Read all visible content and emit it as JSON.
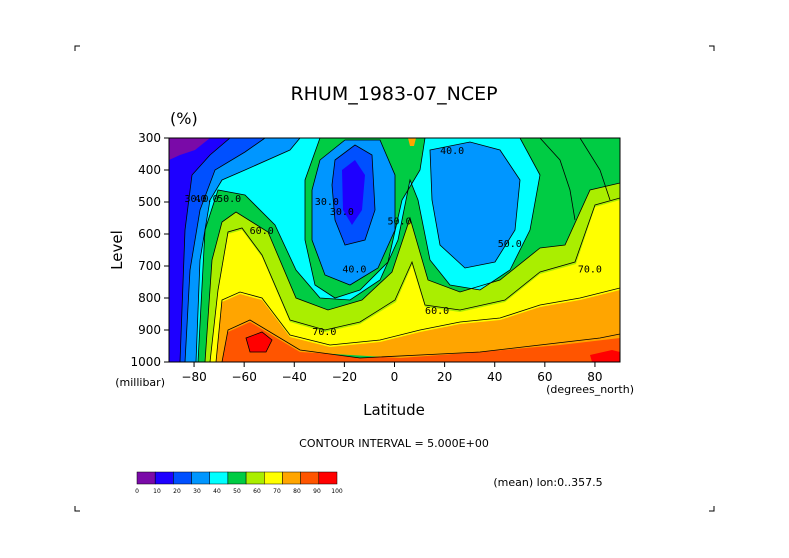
{
  "chart_data": {
    "type": "heatmap",
    "subtype": "filled-contour",
    "title": "RHUM_1983-07_NCEP",
    "units_label": "(%)",
    "xlabel": "Latitude",
    "ylabel": "Level",
    "x_units": "(degrees_north)",
    "y_units": "(millibar)",
    "xlim": [
      -90,
      90
    ],
    "ylim": [
      1000,
      300
    ],
    "x_ticks": [
      -80,
      -60,
      -40,
      -20,
      0,
      20,
      40,
      60,
      80
    ],
    "x_tick_labels": [
      "−80",
      "−60",
      "−40",
      "−20",
      "0",
      "20",
      "40",
      "60",
      "80"
    ],
    "y_ticks": [
      300,
      400,
      500,
      600,
      700,
      800,
      900,
      1000
    ],
    "y_tick_labels": [
      "300",
      "400",
      "500",
      "600",
      "700",
      "800",
      "900",
      "1000"
    ],
    "contour_interval_text": "CONTOUR INTERVAL = 5.000E+00",
    "mean_text": "(mean) lon:0..357.5",
    "colorbar": {
      "levels": [
        0,
        10,
        20,
        30,
        40,
        50,
        60,
        70,
        80,
        90,
        100
      ],
      "level_labels": [
        "0",
        "10",
        "20",
        "30",
        "40",
        "50",
        "60",
        "70",
        "80",
        "90",
        "100"
      ],
      "colors": [
        "#7a0aa8",
        "#1e00ff",
        "#0050ff",
        "#0096ff",
        "#00ffff",
        "#00cc44",
        "#aaee00",
        "#ffff00",
        "#ffa500",
        "#ff5500",
        "#ff0000"
      ]
    },
    "contour_labels": [
      {
        "text": "30.0",
        "lat": -79,
        "lev": 500
      },
      {
        "text": "40.0",
        "lat": -75,
        "lev": 500
      },
      {
        "text": "50.0",
        "lat": -66,
        "lev": 500
      },
      {
        "text": "60.0",
        "lat": -53,
        "lev": 600
      },
      {
        "text": "30.0",
        "lat": -27,
        "lev": 510
      },
      {
        "text": "30.0",
        "lat": -21,
        "lev": 540
      },
      {
        "text": "40.0",
        "lat": -16,
        "lev": 720
      },
      {
        "text": "50.0",
        "lat": 2,
        "lev": 570
      },
      {
        "text": "40.0",
        "lat": 23,
        "lev": 350
      },
      {
        "text": "70.0",
        "lat": -28,
        "lev": 915
      },
      {
        "text": "60.0",
        "lat": 17,
        "lev": 850
      },
      {
        "text": "50.0",
        "lat": 46,
        "lev": 640
      },
      {
        "text": "70.0",
        "lat": 78,
        "lev": 720
      }
    ],
    "grid": false
  }
}
